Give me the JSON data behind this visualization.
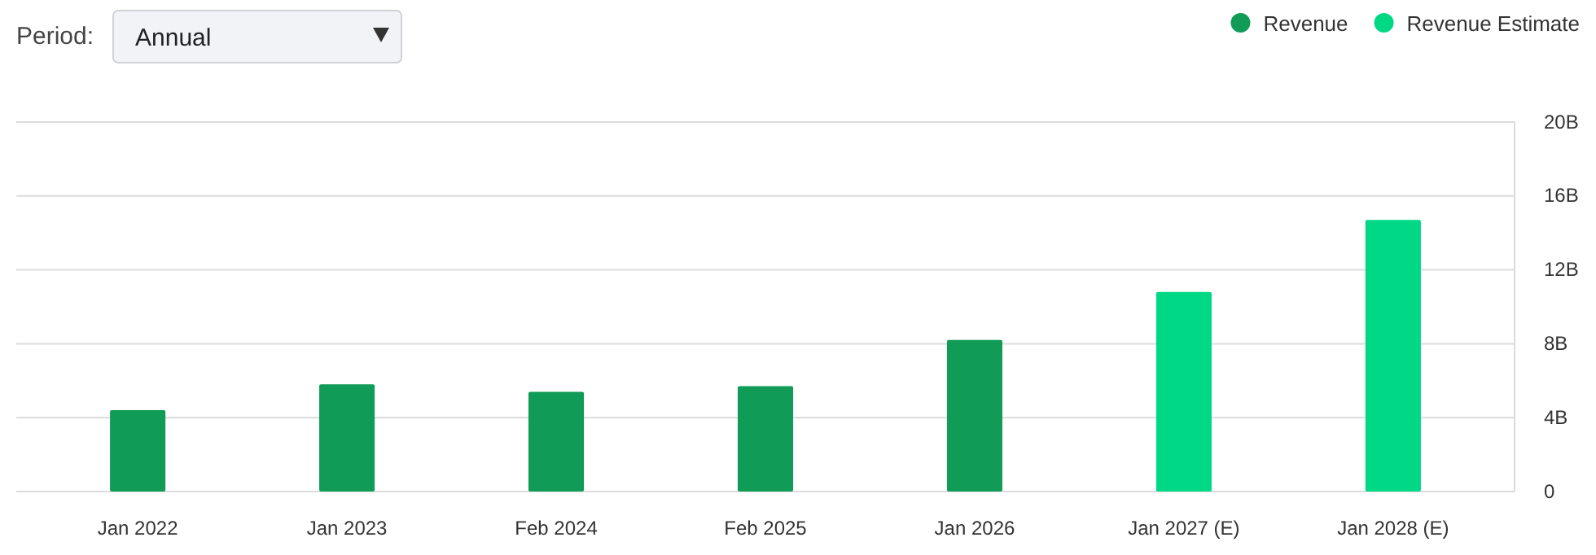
{
  "chart_data": {
    "type": "bar",
    "categories": [
      "Jan 2022",
      "Jan 2023",
      "Feb 2024",
      "Feb 2025",
      "Jan 2026",
      "Jan 2027 (E)",
      "Jan 2028 (E)"
    ],
    "series": [
      {
        "name": "Revenue",
        "color": "#109b56",
        "values": [
          4.4,
          5.8,
          5.4,
          5.7,
          8.2,
          null,
          null
        ]
      },
      {
        "name": "Revenue Estimate",
        "color": "#00d885",
        "values": [
          null,
          null,
          null,
          null,
          null,
          10.8,
          14.7
        ]
      }
    ],
    "ylim": [
      0,
      20
    ],
    "yticks": [
      0,
      {
        "value": 4,
        "label": "4B"
      },
      {
        "value": 8,
        "label": "8B"
      },
      {
        "value": 12,
        "label": "12B"
      },
      {
        "value": 16,
        "label": "16B"
      },
      {
        "value": 20,
        "label": "20B"
      }
    ],
    "grid": "y",
    "legend": "top right",
    "annotations": [
      "Period:",
      "Annual"
    ]
  }
}
